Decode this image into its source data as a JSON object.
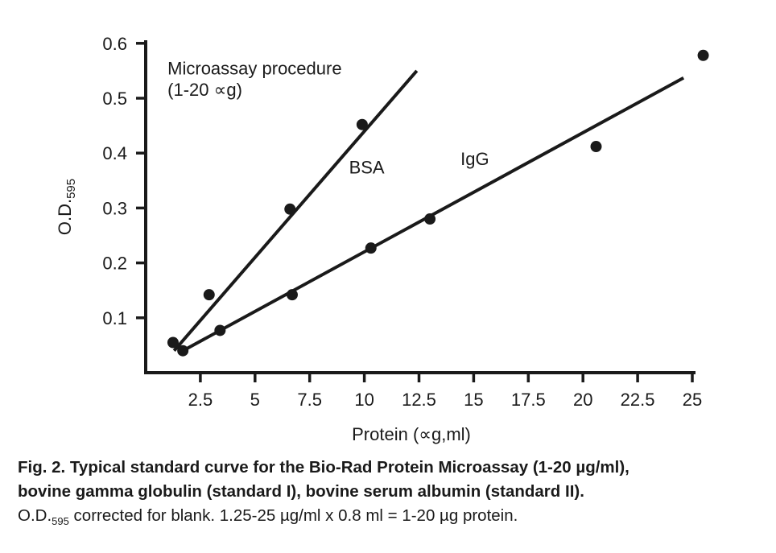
{
  "chart_data": {
    "type": "scatter",
    "xlabel": "Protein (∝g,ml)",
    "ylabel_main": "O.D.",
    "ylabel_sub": "595",
    "xlim": [
      0,
      25.5
    ],
    "ylim": [
      0,
      0.6
    ],
    "x_ticks": [
      2.5,
      5,
      7.5,
      10,
      12.5,
      15,
      17.5,
      20,
      22.5,
      25
    ],
    "x_tick_labels": [
      "2.5",
      "5",
      "7.5",
      "10",
      "12.5",
      "15",
      "17.5",
      "20",
      "22.5",
      "25"
    ],
    "y_ticks": [
      0.1,
      0.2,
      0.3,
      0.4,
      0.5,
      0.6
    ],
    "y_tick_labels": [
      "0.1",
      "0.2",
      "0.3",
      "0.4",
      "0.5",
      "0.6"
    ],
    "grid": false,
    "annotations": [
      {
        "text": "Microassay procedure",
        "x": 1,
        "y": 0.555
      },
      {
        "text": "(1-20 ∝g)",
        "x": 1,
        "y": 0.516
      }
    ],
    "series": [
      {
        "name": "BSA",
        "label_at": {
          "x": 9.3,
          "y": 0.375
        },
        "points": [
          {
            "x": 1.25,
            "y": 0.055
          },
          {
            "x": 2.9,
            "y": 0.142
          },
          {
            "x": 6.6,
            "y": 0.298
          },
          {
            "x": 9.9,
            "y": 0.452
          }
        ],
        "fit_line": [
          {
            "x": 1.3,
            "y": 0.04
          },
          {
            "x": 12.4,
            "y": 0.55
          }
        ]
      },
      {
        "name": "IgG",
        "label_at": {
          "x": 14.4,
          "y": 0.39
        },
        "points": [
          {
            "x": 1.7,
            "y": 0.04
          },
          {
            "x": 3.4,
            "y": 0.077
          },
          {
            "x": 6.7,
            "y": 0.142
          },
          {
            "x": 10.3,
            "y": 0.227
          },
          {
            "x": 13.0,
            "y": 0.28
          },
          {
            "x": 20.6,
            "y": 0.412
          },
          {
            "x": 25.5,
            "y": 0.578
          }
        ],
        "fit_line": [
          {
            "x": 1.7,
            "y": 0.04
          },
          {
            "x": 24.6,
            "y": 0.537
          }
        ]
      }
    ]
  },
  "caption": {
    "line1": "Fig. 2. Typical standard curve for the Bio-Rad Protein Microassay (1-20 µg/ml),",
    "line2": "bovine gamma globulin (standard I), bovine serum albumin (standard II).",
    "line3_prefix": "O.D.",
    "line3_sub": "595",
    "line3_rest": " corrected for blank. 1.25-25 µg/ml x 0.8 ml = 1-20 µg protein."
  }
}
